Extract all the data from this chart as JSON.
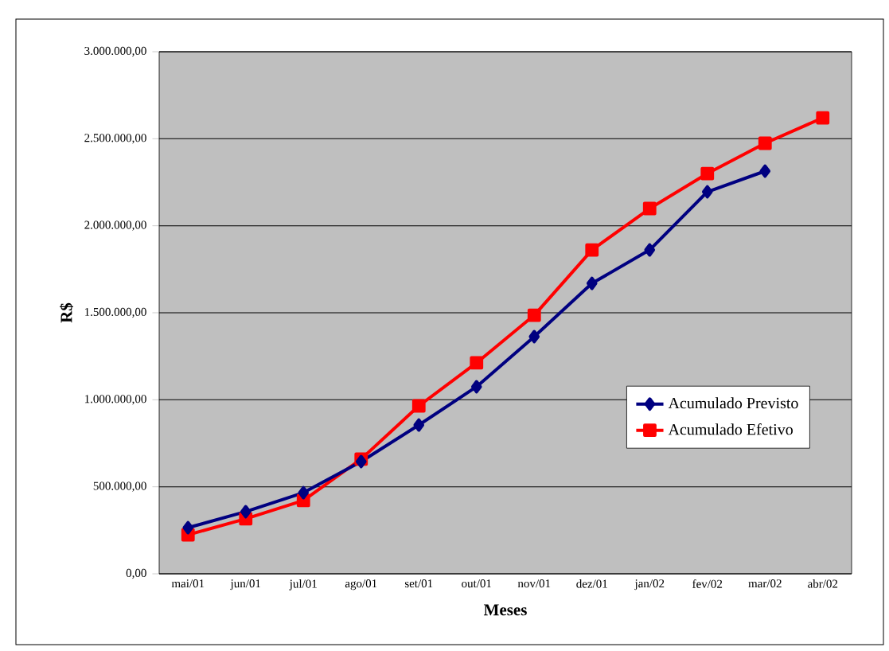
{
  "chart_data": {
    "type": "line",
    "xlabel": "Meses",
    "ylabel": "R$",
    "categories": [
      "mai/01",
      "jun/01",
      "jul/01",
      "ago/01",
      "set/01",
      "out/01",
      "nov/01",
      "dez/01",
      "jan/02",
      "fev/02",
      "mar/02",
      "abr/02"
    ],
    "series": [
      {
        "name": "Acumulado Previsto",
        "color": "#000080",
        "marker": "diamond",
        "values": [
          265000,
          357000,
          466000,
          645000,
          855000,
          1075000,
          1363000,
          1669000,
          1861000,
          2195000,
          2314000,
          null
        ]
      },
      {
        "name": "Acumulado Efetivo",
        "color": "#ff0000",
        "marker": "square",
        "values": [
          224000,
          316000,
          421000,
          659000,
          965000,
          1212000,
          1486000,
          1861000,
          2099000,
          2300000,
          2474000,
          2620000
        ]
      }
    ],
    "ylim": [
      0,
      3000000
    ],
    "yticks": [
      {
        "value": 0,
        "label": "0,00"
      },
      {
        "value": 500000,
        "label": "500.000,00"
      },
      {
        "value": 1000000,
        "label": "1.000.000,00"
      },
      {
        "value": 1500000,
        "label": "1.500.000,00"
      },
      {
        "value": 2000000,
        "label": "2.000.000,00"
      },
      {
        "value": 2500000,
        "label": "2.500.000,00"
      },
      {
        "value": 3000000,
        "label": "3.000.000,00"
      }
    ],
    "grid": "y",
    "legend": "right",
    "line_style": "solid"
  }
}
